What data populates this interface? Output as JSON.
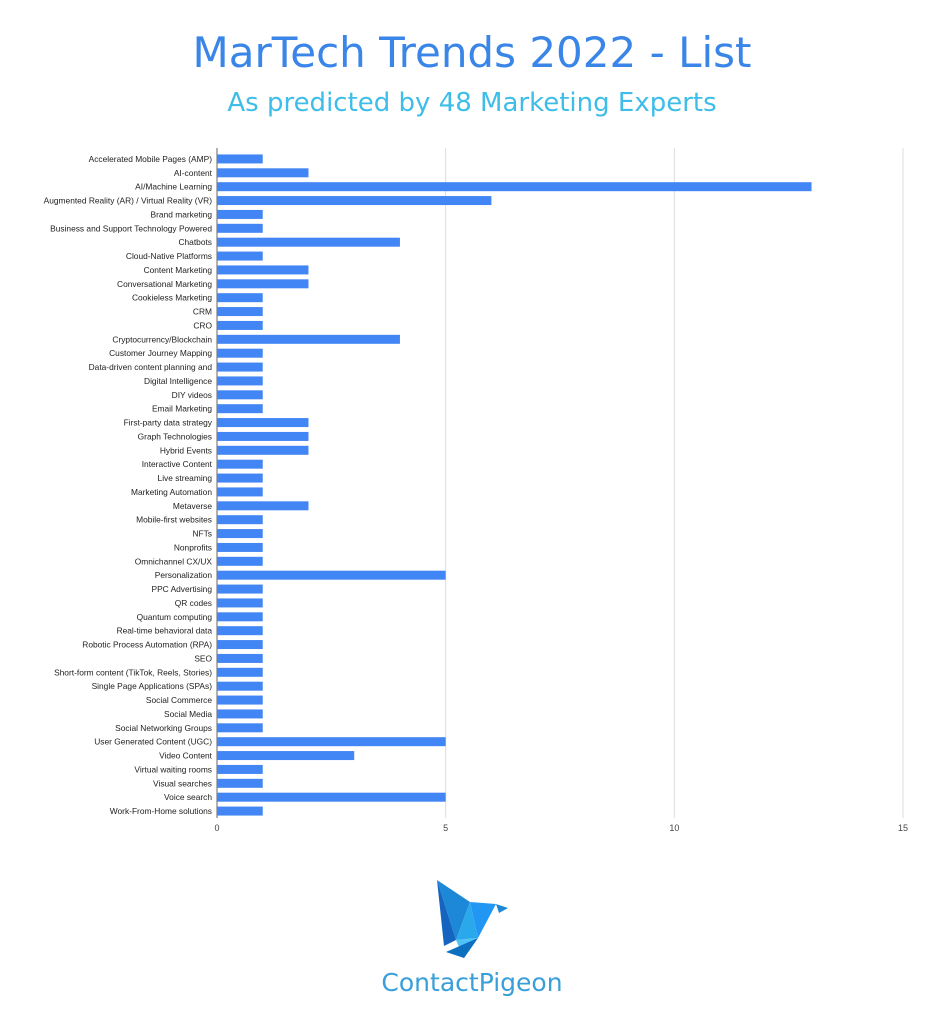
{
  "header": {
    "title": "MarTech Trends 2022 - List",
    "subtitle": "As predicted by 48 Marketing Experts"
  },
  "brand": {
    "name": "ContactPigeon",
    "icon": "origami-pigeon-icon"
  },
  "colors": {
    "bar": "#4285f4",
    "grid": "#dddddd",
    "title": "#3a86e8",
    "subtitle": "#3dbde8"
  },
  "chart_data": {
    "type": "bar",
    "orientation": "horizontal",
    "grid": true,
    "legend": "none",
    "xlim": [
      0,
      15
    ],
    "x_ticks": [
      0,
      5,
      10,
      15
    ],
    "categories": [
      "Accelerated Mobile Pages (AMP)",
      "AI-content",
      "AI/Machine Learning",
      "Augmented Reality (AR) / Virtual Reality (VR)",
      "Brand marketing",
      "Business and Support Technology Powered",
      "Chatbots",
      "Cloud-Native Platforms",
      "Content Marketing",
      "Conversational Marketing",
      "Cookieless Marketing",
      "CRM",
      "CRO",
      "Cryptocurrency/Blockchain",
      "Customer Journey Mapping",
      "Data-driven content planning and",
      "Digital Intelligence",
      "DIY videos",
      "Email Marketing",
      "First-party data strategy",
      "Graph Technologies",
      "Hybrid Events",
      "Interactive Content",
      "Live streaming",
      "Marketing Automation",
      "Metaverse",
      "Mobile-first websites",
      "NFTs",
      "Nonprofits",
      "Omnichannel CX/UX",
      "Personalization",
      "PPC Advertising",
      "QR codes",
      "Quantum computing",
      "Real-time behavioral data",
      "Robotic Process Automation (RPA)",
      "SEO",
      "Short-form content (TikTok, Reels, Stories)",
      "Single Page Applications (SPAs)",
      "Social Commerce",
      "Social Media",
      "Social Networking Groups",
      "User Generated Content (UGC)",
      "Video Content",
      "Virtual waiting rooms",
      "Visual searches",
      "Voice search",
      "Work-From-Home solutions"
    ],
    "values": [
      1,
      2,
      13,
      6,
      1,
      1,
      4,
      1,
      2,
      2,
      1,
      1,
      1,
      4,
      1,
      1,
      1,
      1,
      1,
      2,
      2,
      2,
      1,
      1,
      1,
      2,
      1,
      1,
      1,
      1,
      5,
      1,
      1,
      1,
      1,
      1,
      1,
      1,
      1,
      1,
      1,
      1,
      5,
      3,
      1,
      1,
      5,
      1
    ]
  }
}
